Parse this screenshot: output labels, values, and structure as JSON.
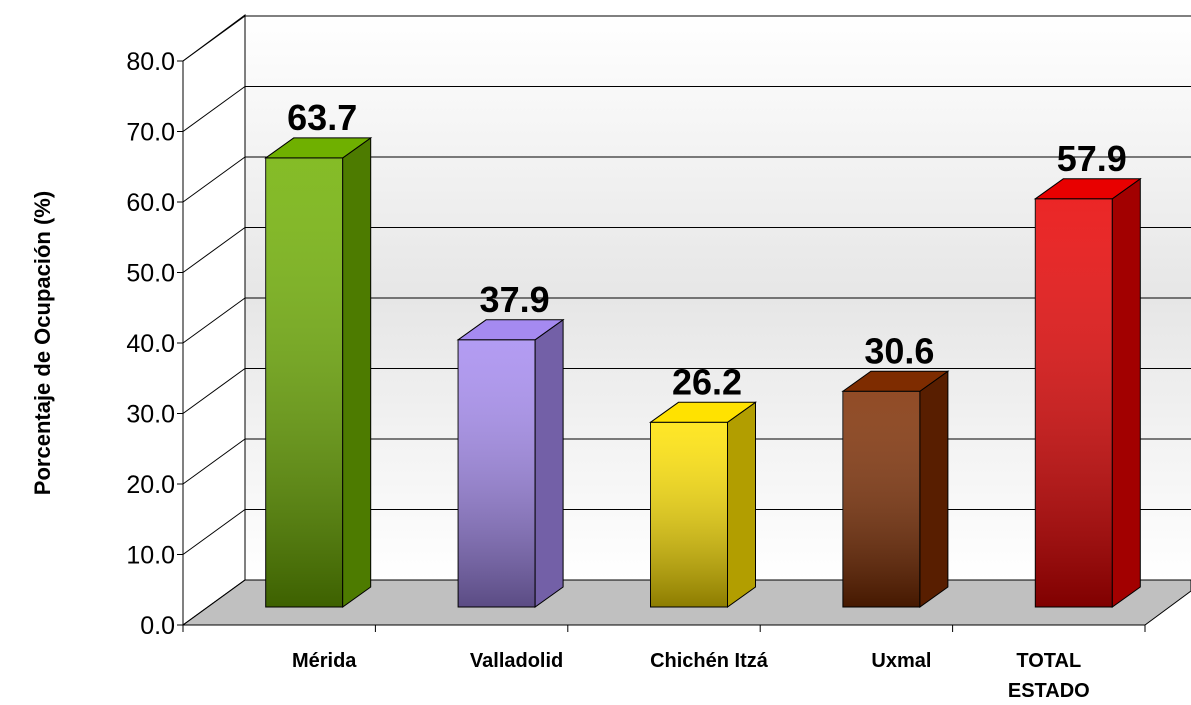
{
  "chart_data": {
    "type": "bar3d",
    "y_label": "Porcentaje de Ocupación (%)",
    "categories": [
      "Mérida",
      "Valladolid",
      "Chichén Itzá",
      "Uxmal",
      "TOTAL ESTADO"
    ],
    "values": [
      63.7,
      37.9,
      26.2,
      30.6,
      57.9
    ],
    "colors": [
      "#6fb000",
      "#a58af0",
      "#ffe200",
      "#7e2c00",
      "#e80000"
    ],
    "ylim": [
      0,
      80
    ],
    "yticks": [
      {
        "value": 0,
        "label": "0.0"
      },
      {
        "value": 10,
        "label": "10.0"
      },
      {
        "value": 20,
        "label": "20.0"
      },
      {
        "value": 30,
        "label": "30.0"
      },
      {
        "value": 40,
        "label": "40.0"
      },
      {
        "value": 50,
        "label": "50.0"
      },
      {
        "value": 60,
        "label": "60.0"
      },
      {
        "value": 70,
        "label": "70.0"
      },
      {
        "value": 80,
        "label": "80.0"
      }
    ],
    "grid": true
  }
}
